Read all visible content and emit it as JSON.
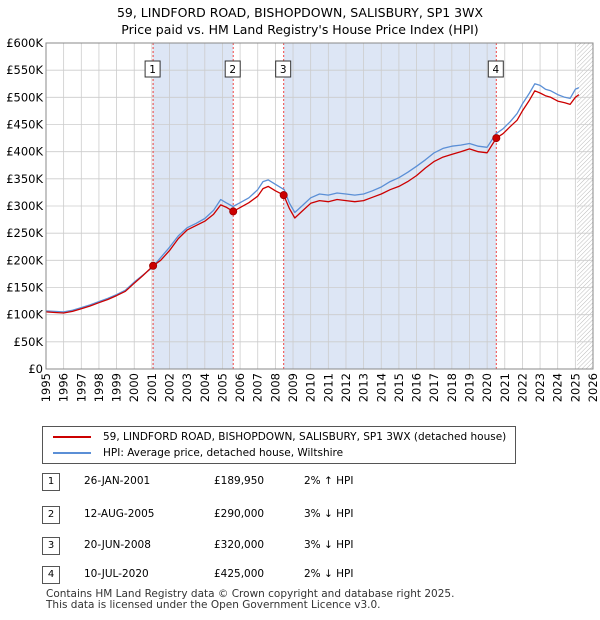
{
  "header": {
    "title_line1": "59, LINDFORD ROAD, BISHOPDOWN, SALISBURY, SP1 3WX",
    "title_line2": "Price paid vs. HM Land Registry's House Price Index (HPI)"
  },
  "legend": {
    "property": "59, LINDFORD ROAD, BISHOPDOWN, SALISBURY, SP1 3WX (detached house)",
    "hpi": "HPI: Average price, detached house, Wiltshire"
  },
  "transactions": [
    {
      "num": "1",
      "date": "26-JAN-2001",
      "price": "£189,950",
      "hpi": "2% ↑ HPI"
    },
    {
      "num": "2",
      "date": "12-AUG-2005",
      "price": "£290,000",
      "hpi": "3% ↓ HPI"
    },
    {
      "num": "3",
      "date": "20-JUN-2008",
      "price": "£320,000",
      "hpi": "3% ↓ HPI"
    },
    {
      "num": "4",
      "date": "10-JUL-2020",
      "price": "£425,000",
      "hpi": "2% ↓ HPI"
    }
  ],
  "footer": {
    "line1": "Contains HM Land Registry data © Crown copyright and database right 2025.",
    "line2": "This data is licensed under the Open Government Licence v3.0."
  },
  "colors": {
    "property_line": "#cc0000",
    "hpi_line": "#5b8fd6",
    "shade": "#dde6f5",
    "marker_line": "#ee4444",
    "grid": "#cccccc"
  },
  "chart_data": {
    "type": "line",
    "xlim": [
      1995,
      2026
    ],
    "ylim": [
      0,
      600000
    ],
    "xticks": [
      1995,
      1996,
      1997,
      1998,
      1999,
      2000,
      2001,
      2002,
      2003,
      2004,
      2005,
      2006,
      2007,
      2008,
      2009,
      2010,
      2011,
      2012,
      2013,
      2014,
      2015,
      2016,
      2017,
      2018,
      2019,
      2020,
      2021,
      2022,
      2023,
      2024,
      2025,
      2026
    ],
    "yticks": [
      0,
      50000,
      100000,
      150000,
      200000,
      250000,
      300000,
      350000,
      400000,
      450000,
      500000,
      550000,
      600000
    ],
    "ytick_labels": [
      "£0",
      "£50K",
      "£100K",
      "£150K",
      "£200K",
      "£250K",
      "£300K",
      "£350K",
      "£400K",
      "£450K",
      "£500K",
      "£550K",
      "£600K"
    ],
    "shaded_ranges": [
      [
        2001.07,
        2005.61
      ],
      [
        2008.47,
        2020.52
      ]
    ],
    "forecast_start": 2025.1,
    "sale_markers": [
      {
        "label": "1",
        "x": 2001.07,
        "y": 189950
      },
      {
        "label": "2",
        "x": 2005.61,
        "y": 290000
      },
      {
        "label": "3",
        "x": 2008.47,
        "y": 320000
      },
      {
        "label": "4",
        "x": 2020.52,
        "y": 425000
      }
    ],
    "series": [
      {
        "name": "59, LINDFORD ROAD, BISHOPDOWN, SALISBURY, SP1 3WX (detached house)",
        "x": [
          1995.0,
          1995.5,
          1996.0,
          1996.5,
          1997.0,
          1997.5,
          1998.0,
          1998.5,
          1999.0,
          1999.5,
          2000.0,
          2000.5,
          2001.07,
          2001.5,
          2002.0,
          2002.5,
          2003.0,
          2003.5,
          2004.0,
          2004.5,
          2004.9,
          2005.2,
          2005.61,
          2006.0,
          2006.5,
          2007.0,
          2007.3,
          2007.6,
          2008.0,
          2008.47,
          2008.8,
          2009.1,
          2009.5,
          2010.0,
          2010.5,
          2011.0,
          2011.5,
          2012.0,
          2012.5,
          2013.0,
          2013.5,
          2014.0,
          2014.5,
          2015.0,
          2015.5,
          2016.0,
          2016.5,
          2017.0,
          2017.5,
          2018.0,
          2018.5,
          2019.0,
          2019.5,
          2020.0,
          2020.52,
          2020.9,
          2021.3,
          2021.7,
          2022.0,
          2022.4,
          2022.7,
          2023.0,
          2023.3,
          2023.6,
          2024.0,
          2024.4,
          2024.7,
          2025.0,
          2025.2
        ],
        "values": [
          105000,
          104000,
          103000,
          106000,
          111000,
          116000,
          122000,
          128000,
          135000,
          143000,
          158000,
          172000,
          189950,
          200000,
          218000,
          240000,
          256000,
          264000,
          272000,
          285000,
          302000,
          298000,
          290000,
          297000,
          306000,
          318000,
          332000,
          336000,
          328000,
          320000,
          295000,
          278000,
          290000,
          305000,
          310000,
          308000,
          312000,
          310000,
          308000,
          310000,
          316000,
          322000,
          330000,
          336000,
          345000,
          356000,
          370000,
          382000,
          390000,
          395000,
          400000,
          405000,
          400000,
          398000,
          425000,
          433000,
          446000,
          458000,
          475000,
          495000,
          512000,
          508000,
          503000,
          500000,
          493000,
          490000,
          487000,
          500000,
          505000
        ]
      },
      {
        "name": "HPI: Average price, detached house, Wiltshire",
        "x": [
          1995.0,
          1995.5,
          1996.0,
          1996.5,
          1997.0,
          1997.5,
          1998.0,
          1998.5,
          1999.0,
          1999.5,
          2000.0,
          2000.5,
          2001.0,
          2001.5,
          2002.0,
          2002.5,
          2003.0,
          2003.5,
          2004.0,
          2004.5,
          2004.9,
          2005.2,
          2005.6,
          2006.0,
          2006.5,
          2007.0,
          2007.3,
          2007.6,
          2008.0,
          2008.5,
          2008.8,
          2009.1,
          2009.5,
          2010.0,
          2010.5,
          2011.0,
          2011.5,
          2012.0,
          2012.5,
          2013.0,
          2013.5,
          2014.0,
          2014.5,
          2015.0,
          2015.5,
          2016.0,
          2016.5,
          2017.0,
          2017.5,
          2018.0,
          2018.5,
          2019.0,
          2019.5,
          2020.0,
          2020.5,
          2020.9,
          2021.3,
          2021.7,
          2022.0,
          2022.4,
          2022.7,
          2023.0,
          2023.3,
          2023.6,
          2024.0,
          2024.4,
          2024.7,
          2025.0,
          2025.2
        ],
        "values": [
          107000,
          106000,
          105000,
          108000,
          113000,
          118000,
          124000,
          130000,
          137000,
          145000,
          160000,
          173000,
          186000,
          205000,
          224000,
          245000,
          260000,
          268000,
          277000,
          292000,
          312000,
          306000,
          299000,
          306000,
          315000,
          330000,
          345000,
          348000,
          340000,
          330000,
          305000,
          288000,
          300000,
          315000,
          322000,
          320000,
          324000,
          322000,
          320000,
          322000,
          328000,
          335000,
          345000,
          352000,
          362000,
          373000,
          385000,
          398000,
          406000,
          410000,
          412000,
          415000,
          410000,
          408000,
          433000,
          442000,
          455000,
          470000,
          488000,
          508000,
          525000,
          522000,
          515000,
          512000,
          505000,
          500000,
          498000,
          515000,
          518000
        ]
      }
    ]
  }
}
